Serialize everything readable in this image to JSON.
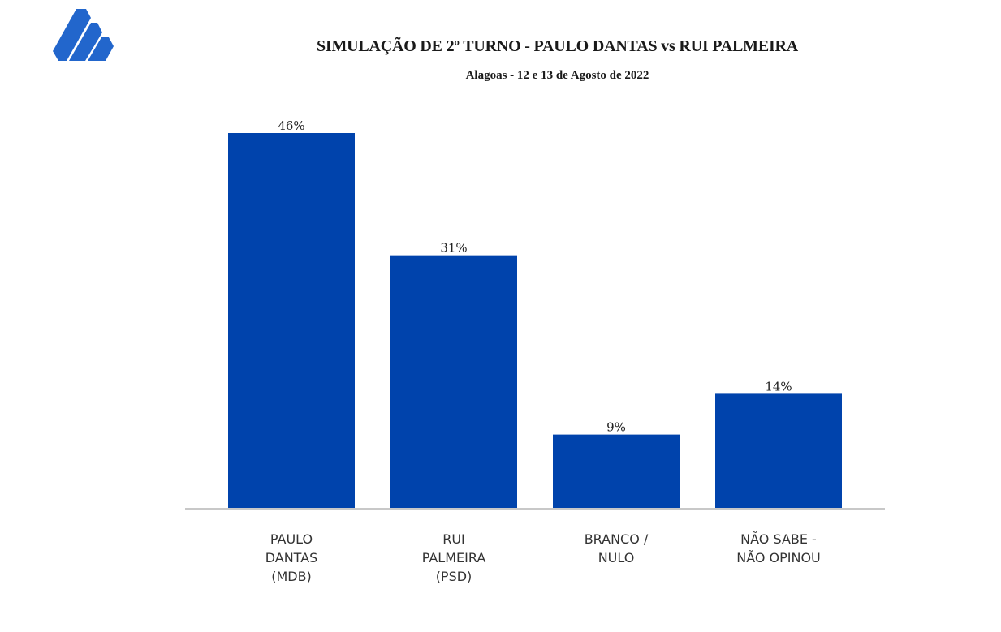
{
  "chart_data": {
    "type": "bar",
    "title": "SIMULAÇÃO DE 2º TURNO - PAULO DANTAS vs RUI PALMEIRA",
    "subtitle": "Alagoas - 12 e 13 de Agosto de 2022",
    "categories": [
      [
        "PAULO",
        "DANTAS",
        "(MDB)"
      ],
      [
        "RUI",
        "PALMEIRA",
        "(PSD)"
      ],
      [
        "BRANCO /",
        "NULO"
      ],
      [
        "NÃO SABE  -",
        "NÃO OPINOU"
      ]
    ],
    "values": [
      46,
      31,
      9,
      14
    ],
    "data_labels": [
      "46%",
      "31%",
      "9%",
      "14%"
    ],
    "ylim": [
      0,
      46
    ],
    "grid": false,
    "xlabel": "",
    "ylabel": "",
    "bar_color": "#0043AC",
    "axis_color": "#c8c8c8"
  },
  "logo": {
    "icon": "stepped-parallelograms-logo",
    "color": "#2266CC"
  }
}
